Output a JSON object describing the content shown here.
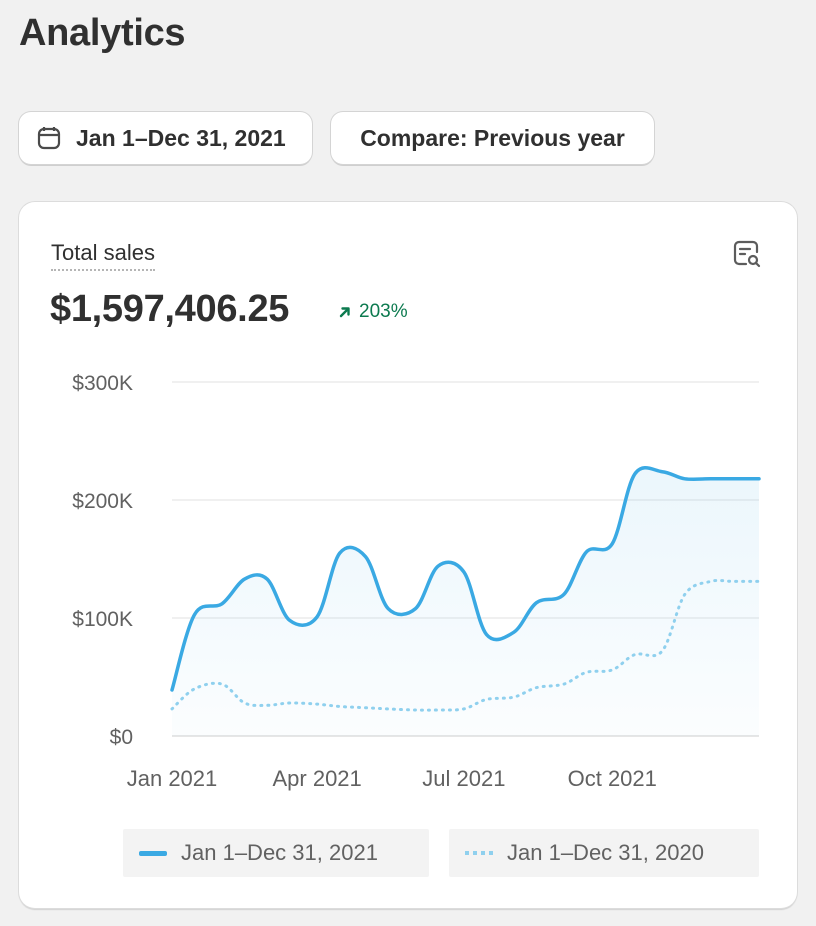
{
  "page": {
    "title": "Analytics"
  },
  "toolbar": {
    "date_range_label": "Jan 1–Dec 31, 2021",
    "compare_label": "Compare: Previous year"
  },
  "card": {
    "metric_label": "Total sales",
    "metric_value": "$1,597,406.25",
    "delta": "203%",
    "legend": {
      "current": "Jan 1–Dec 31, 2021",
      "previous": "Jan 1–Dec 31, 2020"
    }
  },
  "colors": {
    "current_series": "#3aa9e3",
    "previous_series": "#8fd0ee",
    "delta_positive": "#0c7a4f"
  },
  "icons": {
    "date_button": "calendar-icon",
    "explore": "data-explore-icon",
    "delta": "arrow-up-right-icon"
  },
  "chart_data": {
    "type": "line",
    "x_tick_labels": [
      "Jan 2021",
      "Apr 2021",
      "Jul 2021",
      "Oct 2021"
    ],
    "y_tick_labels": [
      "$300K",
      "$200K",
      "$100K",
      "$0"
    ],
    "ylim": [
      0,
      300000
    ],
    "grid": true,
    "x": [
      "2021-01-01",
      "2021-01-15",
      "2021-02-01",
      "2021-02-15",
      "2021-03-01",
      "2021-03-15",
      "2021-04-01",
      "2021-04-15",
      "2021-05-01",
      "2021-05-15",
      "2021-06-01",
      "2021-06-15",
      "2021-07-01",
      "2021-07-15",
      "2021-08-01",
      "2021-08-15",
      "2021-09-01",
      "2021-09-15",
      "2021-10-01",
      "2021-10-15",
      "2021-11-01",
      "2021-11-15",
      "2021-12-01",
      "2021-12-15",
      "2021-12-31"
    ],
    "series": [
      {
        "name": "Jan 1–Dec 31, 2021",
        "style": "solid",
        "values": [
          39000,
          103000,
          112000,
          133000,
          133000,
          98000,
          101000,
          155000,
          152000,
          108000,
          108000,
          144000,
          139000,
          86000,
          88000,
          113000,
          120000,
          156000,
          163000,
          222000,
          224000,
          218000,
          218000,
          218000,
          218000
        ]
      },
      {
        "name": "Jan 1–Dec 31, 2020",
        "style": "dotted",
        "values": [
          23000,
          40000,
          44000,
          28000,
          26000,
          28000,
          27000,
          25000,
          24000,
          23000,
          22000,
          22000,
          23000,
          31000,
          33000,
          41000,
          44000,
          54000,
          56000,
          69000,
          72000,
          120000,
          131000,
          131000,
          131000
        ]
      }
    ]
  }
}
